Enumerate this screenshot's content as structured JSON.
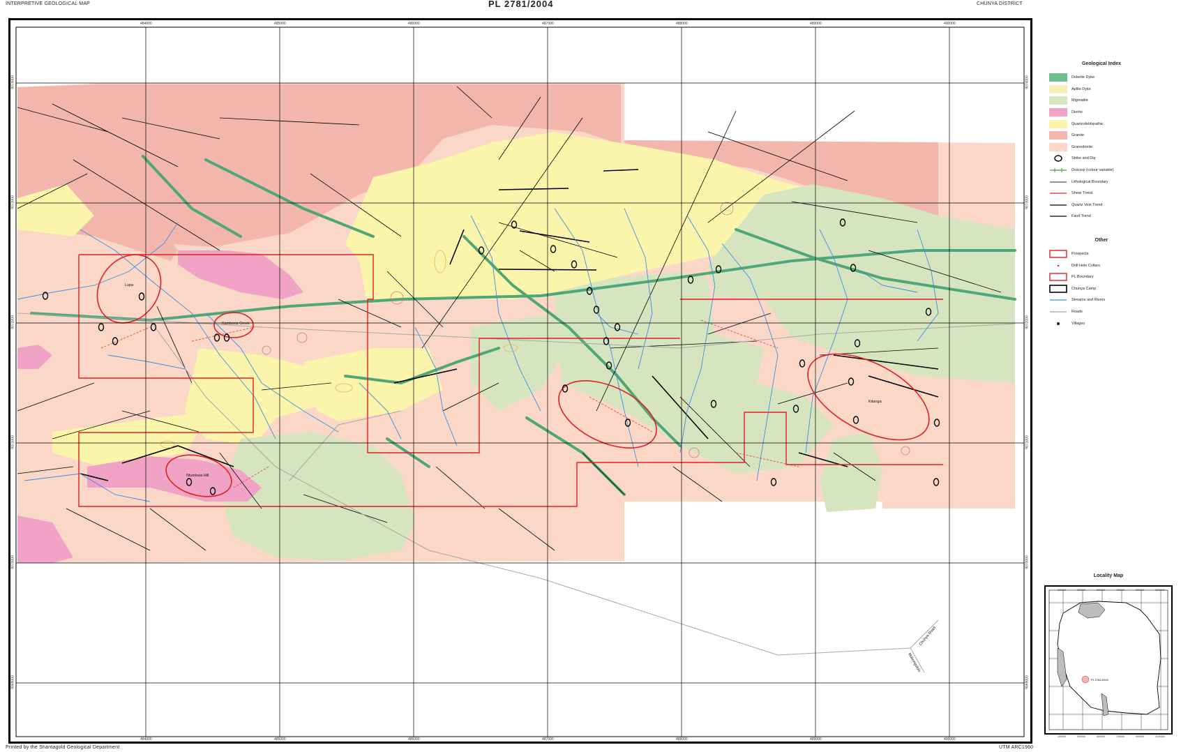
{
  "header": {
    "left": "INTERPRETIVE GEOLOGICAL MAP",
    "center": "PL 2781/2004",
    "right": "CHUNYA DISTRICT"
  },
  "footer": {
    "left": "Printed by the Shantagold Geological Department",
    "right": "UTM ARC1960"
  },
  "map": {
    "grid_eastings_top": [
      "484000",
      "485000",
      "486000",
      "487000",
      "488000",
      "489000",
      "490000"
    ],
    "grid_eastings_bottom": [
      "484000",
      "485000",
      "486000",
      "487000",
      "488000",
      "489000",
      "490000"
    ],
    "grid_northings": [
      "9074000",
      "9073000",
      "9072000",
      "9071000",
      "9070000",
      "9069000"
    ],
    "place_labels": {
      "kambona_creek": "Kambona Creek",
      "lupa": "Lupa",
      "kitanga": "Kitanga",
      "ntumbwa_hill": "Ntumbwa Hill",
      "road_label": "Chunya Road",
      "road_label_2": "Makongolosi"
    },
    "colors": {
      "granodiorite": "#fad7c7",
      "granite": "#f2b6ad",
      "quartzofeldspathic": "#fbf5ab",
      "diorite": "#f0a3c4",
      "migmatite": "#d6e5c0",
      "aplite": "#f3edb8",
      "dolerite": "#6fbf8c",
      "rivers": "#3e8ee0",
      "prospect": "#e31e24",
      "roads": "#a0a0a0"
    }
  },
  "legend": {
    "geological_title": "Geological Index",
    "geological_items": [
      {
        "label": "Dolerite Dyke",
        "color": "#6fbf8c"
      },
      {
        "label": "Aplite Dyke",
        "color": "#f3edb8"
      },
      {
        "label": "Migmatite",
        "color": "#d6e5c0"
      },
      {
        "label": "Diorite",
        "color": "#f0a3c4"
      },
      {
        "label": "Quartzofeldspathic",
        "color": "#fbf5ab"
      },
      {
        "label": "Granite",
        "color": "#f2b6ad"
      },
      {
        "label": "Granodiorite",
        "color": "#fad7c7"
      }
    ],
    "line_items": [
      {
        "label": "Strike and Dip",
        "icon": "strike-dip-icon"
      },
      {
        "label": "Outcrop (colour variable)",
        "icon": "outcrop-icon",
        "color": "#4d9a2f"
      },
      {
        "label": "Lithological Boundary",
        "icon": "line-icon",
        "color": "#555555"
      },
      {
        "label": "Shear Trend",
        "icon": "line-icon",
        "color": "#e31e24"
      },
      {
        "label": "Quartz Vein Trend",
        "icon": "line-icon",
        "color": "#000000"
      },
      {
        "label": "Fault Trend",
        "icon": "line-icon",
        "color": "#000000"
      }
    ],
    "other_title": "Other",
    "other_items": [
      {
        "label": "Prospects",
        "icon": "prospect-box-icon",
        "color": "#e31e24"
      },
      {
        "label": "Drill Hole Collars",
        "icon": "drill-collar-icon",
        "color": "#e31e24"
      },
      {
        "label": "PL Boundary",
        "icon": "pl-boundary-icon",
        "color": "#e31e24"
      },
      {
        "label": "Chunya Camp",
        "icon": "camp-box-icon",
        "color": "#000000"
      },
      {
        "label": "Streams and Rivers",
        "icon": "line-icon",
        "color": "#3e8ee0"
      },
      {
        "label": "Roads",
        "icon": "line-icon",
        "color": "#a0a0a0"
      },
      {
        "label": "Villages",
        "icon": "village-icon",
        "color": "#000000"
      }
    ]
  },
  "locality_map": {
    "title": "Locality Map",
    "coords": [
      "100000",
      "300000",
      "500000",
      "700000",
      "900000",
      "1100000"
    ],
    "license_label": "PL 2781/2004"
  }
}
